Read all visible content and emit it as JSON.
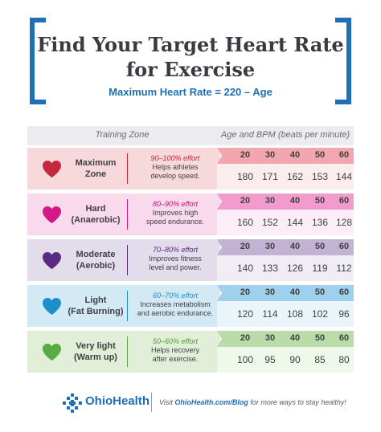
{
  "header": {
    "title_line1": "Find Your Target Heart Rate",
    "title_line2": "for Exercise",
    "subtitle": "Maximum Heart Rate = 220 – Age"
  },
  "table": {
    "col_left": "Training Zone",
    "col_right": "Age and BPM (beats per minute)",
    "zones": [
      {
        "name_line1": "Maximum",
        "name_line2": "Zone",
        "effort": "90–100% effort",
        "desc_line1": "Helps athletes",
        "desc_line2": "develop speed.",
        "ages": [
          "20",
          "30",
          "40",
          "50",
          "60"
        ],
        "bpm": [
          "180",
          "171",
          "162",
          "153",
          "144"
        ],
        "colors": {
          "heart": "#c3283f",
          "panel": "#f7d9dc",
          "age_band": "#f2a7ae",
          "bpm_band": "#fbecee",
          "effort": "#c3283f"
        }
      },
      {
        "name_line1": "Hard",
        "name_line2": "(Anaerobic)",
        "effort": "80–90% effort",
        "desc_line1": "Improves high",
        "desc_line2": "speed endurance.",
        "ages": [
          "20",
          "30",
          "40",
          "50",
          "60"
        ],
        "bpm": [
          "160",
          "152",
          "144",
          "136",
          "128"
        ],
        "colors": {
          "heart": "#d4178a",
          "panel": "#f9d9ec",
          "age_band": "#f29ccd",
          "bpm_band": "#fcedf6",
          "effort": "#c8127c"
        }
      },
      {
        "name_line1": "Moderate",
        "name_line2": "(Aerobic)",
        "effort": "70–80% effort",
        "desc_line1": "Improves fitness",
        "desc_line2": "level and power.",
        "ages": [
          "20",
          "30",
          "40",
          "50",
          "60"
        ],
        "bpm": [
          "140",
          "133",
          "126",
          "119",
          "112"
        ],
        "colors": {
          "heart": "#5a2a82",
          "panel": "#e3dcea",
          "age_band": "#c1b3d1",
          "bpm_band": "#f1edf5",
          "effort": "#5a2a82"
        }
      },
      {
        "name_line1": "Light",
        "name_line2": "(Fat Burning)",
        "effort": "60–70% effort",
        "desc_line1": "Increases metabolism",
        "desc_line2": "and aerobic endurance.",
        "ages": [
          "20",
          "30",
          "40",
          "50",
          "60"
        ],
        "bpm": [
          "120",
          "114",
          "108",
          "102",
          "96"
        ],
        "colors": {
          "heart": "#1c8fcc",
          "panel": "#d3eaf5",
          "age_band": "#9fd1ec",
          "bpm_band": "#e9f5fb",
          "effort": "#1c8fcc"
        }
      },
      {
        "name_line1": "Very light",
        "name_line2": "(Warm up)",
        "effort": "50–60% effort",
        "desc_line1": "Helps recovery",
        "desc_line2": "after exercise.",
        "ages": [
          "20",
          "30",
          "40",
          "50",
          "60"
        ],
        "bpm": [
          "100",
          "95",
          "90",
          "85",
          "80"
        ],
        "colors": {
          "heart": "#5aaa46",
          "panel": "#e1efd8",
          "age_band": "#b9dca8",
          "bpm_band": "#f0f7eb",
          "effort": "#4f9b3c"
        }
      }
    ]
  },
  "footer": {
    "brand": "OhioHealth",
    "text_before": "Visit ",
    "link": "OhioHealth.com/Blog",
    "text_after": " for more ways to stay healthy!"
  }
}
